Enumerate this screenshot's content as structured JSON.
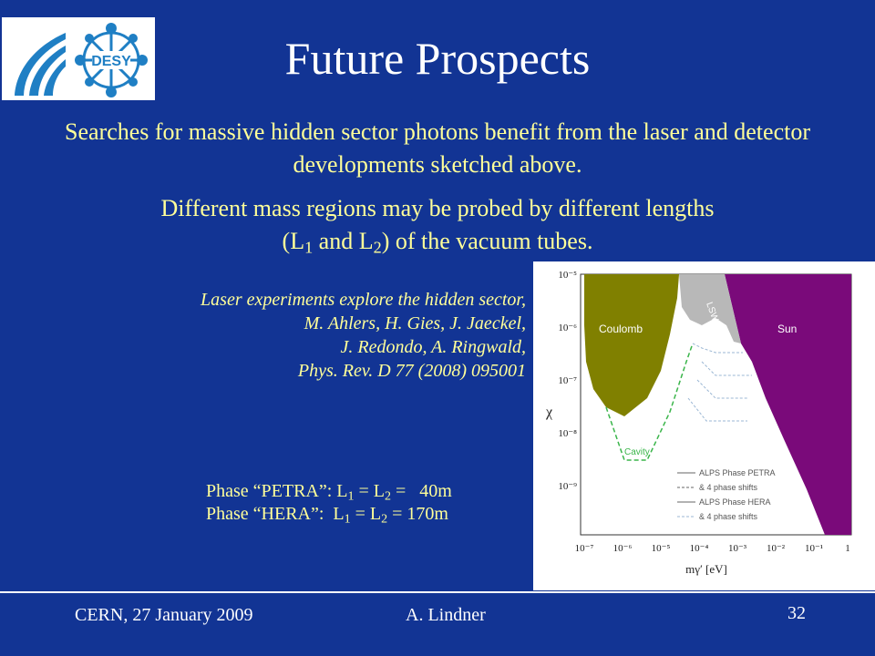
{
  "title": "Future Prospects",
  "paragraph1": "Searches for massive hidden sector photons benefit from the laser and detector developments sketched above.",
  "paragraph2": {
    "line1": "Different mass regions may be probed by different lengths",
    "open": "(L",
    "sub1": "1",
    "and": " and L",
    "sub2": "2",
    "rest": ") of the vacuum tubes."
  },
  "citation": [
    "Laser experiments explore the hidden sector,",
    "M. Ahlers, H. Gies, J. Jaeckel,",
    "J. Redondo, A. Ringwald,",
    "Phys. Rev. D 77 (2008) 095001"
  ],
  "phases": [
    {
      "name": "Phase “PETRA”: L",
      "s1": "1",
      "mid": " = L",
      "s2": "2",
      "val": " =   40m"
    },
    {
      "name": "Phase “HERA”:  L",
      "s1": "1",
      "mid": " = L",
      "s2": "2",
      "val": " = 170m"
    }
  ],
  "logo": {
    "text": "DESY",
    "color": "#1f7fc4"
  },
  "plot": {
    "ytick_labels": [
      "10⁻⁵",
      "10⁻⁶",
      "10⁻⁷",
      "10⁻⁸",
      "10⁻⁹"
    ],
    "xtick_labels": [
      "10⁻⁷",
      "10⁻⁶",
      "10⁻⁵",
      "10⁻⁴",
      "10⁻³",
      "10⁻²",
      "10⁻¹",
      "1"
    ],
    "ylabel": "χ",
    "xlabel": "mγ′ [eV]",
    "region_coulomb": "Coulomb",
    "region_sun": "Sun",
    "region_lsw": "LSW",
    "region_cavity": "Cavity",
    "legend": [
      "ALPS Phase PETRA",
      "& 4 phase shifts",
      "ALPS Phase HERA",
      "& 4 phase shifts"
    ],
    "colors": {
      "coulomb": "#808000",
      "sun": "#7a0a7a",
      "cavity": "#3ab54a"
    }
  },
  "footer": {
    "left": "CERN, 27 January 2009",
    "center": "A. Lindner",
    "page": "32"
  }
}
